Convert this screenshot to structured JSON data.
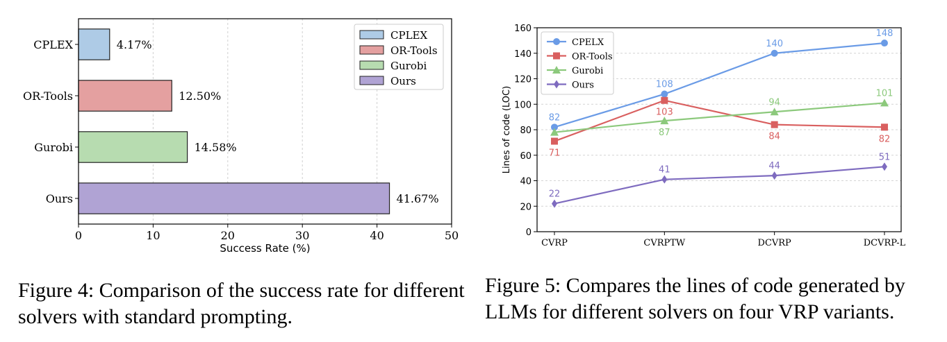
{
  "figures": [
    {
      "caption": "Figure 4: Comparison of the success rate for different solvers with standard prompting.",
      "chart_data": {
        "type": "bar",
        "orientation": "horizontal",
        "title": "",
        "xlabel": "Success Rate (%)",
        "ylabel": "",
        "xlim": [
          0,
          50
        ],
        "xticks": [
          0,
          10,
          20,
          30,
          40,
          50
        ],
        "grid": "vertical dashed",
        "categories": [
          "CPLEX",
          "OR-Tools",
          "Gurobi",
          "Ours"
        ],
        "values": [
          4.17,
          12.5,
          14.58,
          41.67
        ],
        "value_labels": [
          "4.17%",
          "12.50%",
          "14.58%",
          "41.67%"
        ],
        "colors": [
          "#aecbe6",
          "#e4a0a0",
          "#b7dcb0",
          "#b0a3d4"
        ],
        "legend": {
          "placement": "top-right",
          "entries": [
            "CPLEX",
            "OR-Tools",
            "Gurobi",
            "Ours"
          ]
        }
      }
    },
    {
      "caption": "Figure 5: Compares the lines of code generated by LLMs for different solvers on four VRP variants.",
      "chart_data": {
        "type": "line",
        "title": "",
        "xlabel": "",
        "ylabel": "Lines of code (LOC)",
        "ylim": [
          0,
          160
        ],
        "yticks": [
          0,
          20,
          40,
          60,
          80,
          100,
          120,
          140,
          160
        ],
        "grid": "horizontal dashed",
        "categories": [
          "CVRP",
          "CVRPTW",
          "DCVRP",
          "DCVRP-L"
        ],
        "series": [
          {
            "name": "CPELX",
            "values": [
              82,
              108,
              140,
              148
            ],
            "color": "#6a9be6",
            "marker": "circle",
            "label_pos": [
              "above",
              "above",
              "above",
              "above"
            ]
          },
          {
            "name": "OR-Tools",
            "values": [
              71,
              103,
              84,
              82
            ],
            "color": "#d95f5f",
            "marker": "square",
            "label_pos": [
              "below",
              "below",
              "below",
              "below"
            ]
          },
          {
            "name": "Gurobi",
            "values": [
              78,
              87,
              94,
              101
            ],
            "color": "#8cc97c",
            "marker": "triangle",
            "label_pos": [
              "none",
              "below",
              "above",
              "above"
            ]
          },
          {
            "name": "Ours",
            "values": [
              22,
              41,
              44,
              51
            ],
            "color": "#7e6bbf",
            "marker": "diamond",
            "label_pos": [
              "above",
              "above",
              "above",
              "above"
            ]
          }
        ],
        "legend": {
          "placement": "top-left"
        }
      }
    }
  ]
}
